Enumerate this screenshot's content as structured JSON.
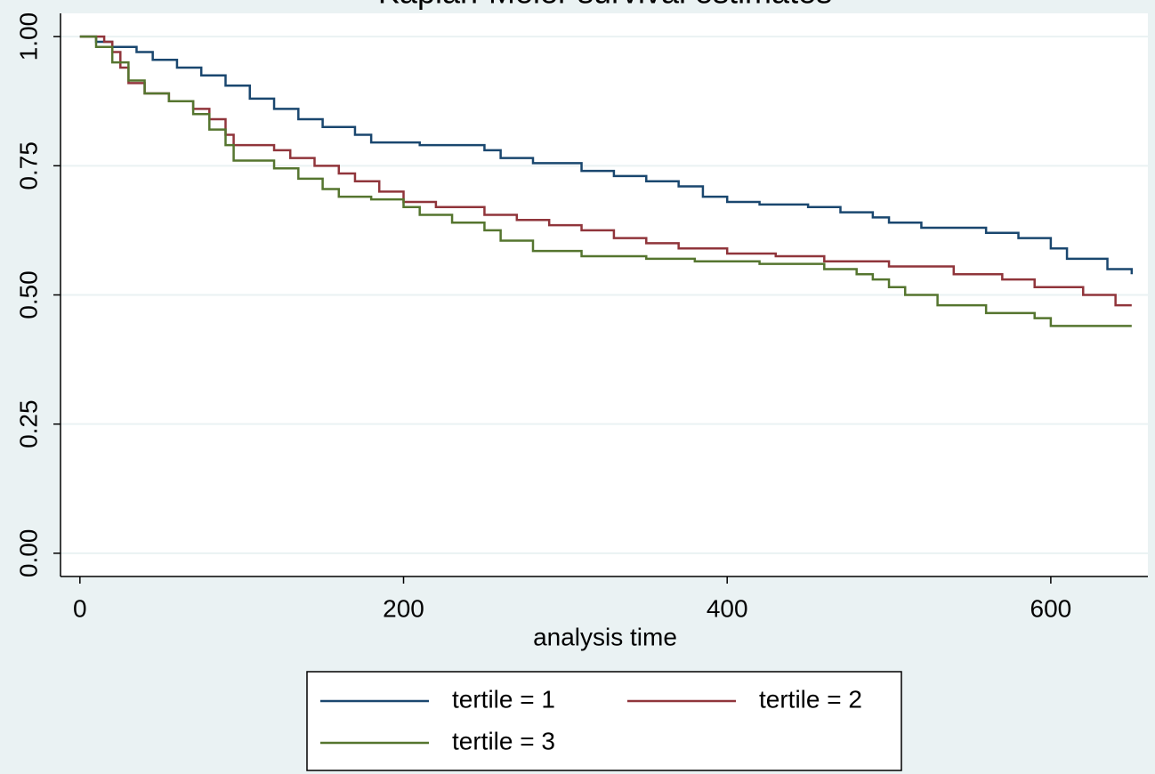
{
  "chart_data": {
    "type": "step",
    "title": "Kaplan-Meier survival estimates",
    "x_label": "analysis time",
    "xlim": [
      -12,
      660
    ],
    "ylim": [
      -0.045,
      1.045
    ],
    "xticks": [
      0,
      200,
      400,
      600
    ],
    "yticks": [
      {
        "value": 0,
        "label": "0.00"
      },
      {
        "value": 0.25,
        "label": "0.25"
      },
      {
        "value": 0.5,
        "label": "0.50"
      },
      {
        "value": 0.75,
        "label": "0.75"
      },
      {
        "value": 1,
        "label": "1.00"
      }
    ],
    "grid": true,
    "legend": "bottom",
    "series": [
      {
        "name": "tertile = 1",
        "color": "#1a476f",
        "x": [
          0,
          10,
          20,
          35,
          45,
          60,
          75,
          90,
          105,
          120,
          135,
          150,
          170,
          180,
          210,
          250,
          260,
          280,
          310,
          330,
          350,
          370,
          385,
          400,
          420,
          450,
          470,
          490,
          500,
          520,
          560,
          580,
          600,
          610,
          635,
          650
        ],
        "values": [
          1,
          0.99,
          0.98,
          0.97,
          0.955,
          0.94,
          0.925,
          0.905,
          0.88,
          0.86,
          0.84,
          0.825,
          0.81,
          0.795,
          0.79,
          0.78,
          0.765,
          0.755,
          0.74,
          0.73,
          0.72,
          0.71,
          0.69,
          0.68,
          0.675,
          0.67,
          0.66,
          0.65,
          0.64,
          0.63,
          0.62,
          0.61,
          0.59,
          0.57,
          0.55,
          0.54
        ]
      },
      {
        "name": "tertile = 2",
        "color": "#90353b",
        "x": [
          0,
          15,
          20,
          25,
          30,
          40,
          55,
          70,
          80,
          90,
          95,
          120,
          130,
          145,
          160,
          170,
          185,
          200,
          220,
          250,
          270,
          290,
          310,
          330,
          350,
          370,
          400,
          430,
          460,
          500,
          540,
          570,
          590,
          620,
          640,
          650
        ],
        "values": [
          1,
          0.99,
          0.97,
          0.94,
          0.91,
          0.89,
          0.875,
          0.86,
          0.84,
          0.81,
          0.79,
          0.78,
          0.765,
          0.75,
          0.735,
          0.72,
          0.7,
          0.68,
          0.67,
          0.655,
          0.645,
          0.635,
          0.625,
          0.61,
          0.6,
          0.59,
          0.58,
          0.575,
          0.565,
          0.555,
          0.54,
          0.53,
          0.515,
          0.5,
          0.48,
          0.48
        ]
      },
      {
        "name": "tertile = 3",
        "color": "#55752f",
        "x": [
          0,
          10,
          20,
          30,
          40,
          55,
          70,
          80,
          90,
          95,
          120,
          135,
          150,
          160,
          180,
          200,
          210,
          230,
          250,
          260,
          280,
          310,
          350,
          380,
          420,
          460,
          480,
          490,
          500,
          510,
          530,
          560,
          590,
          600,
          650
        ],
        "values": [
          1,
          0.98,
          0.95,
          0.915,
          0.89,
          0.875,
          0.85,
          0.82,
          0.79,
          0.76,
          0.745,
          0.725,
          0.705,
          0.69,
          0.685,
          0.67,
          0.655,
          0.64,
          0.625,
          0.605,
          0.585,
          0.575,
          0.57,
          0.565,
          0.56,
          0.55,
          0.54,
          0.53,
          0.515,
          0.5,
          0.48,
          0.465,
          0.455,
          0.44,
          0.44
        ]
      }
    ]
  }
}
